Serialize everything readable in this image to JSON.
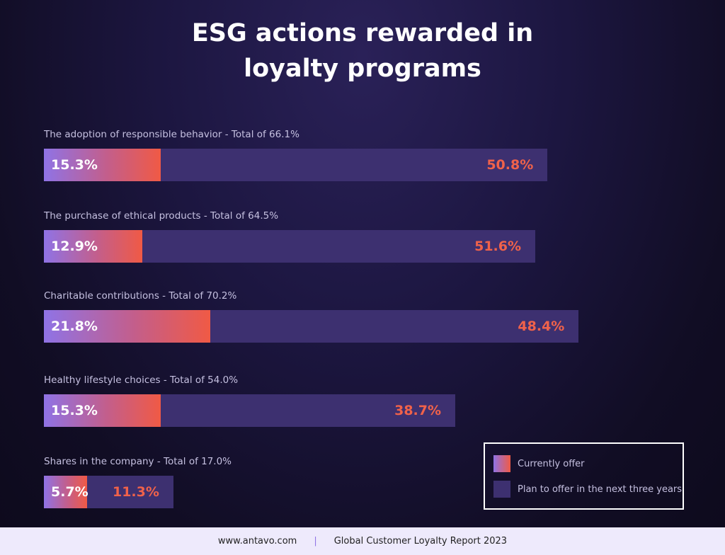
{
  "chart_data": {
    "type": "bar",
    "orientation": "horizontal",
    "stacked": true,
    "title": "ESG actions rewarded in loyalty programs",
    "title_lines": [
      "ESG actions rewarded in",
      "loyalty programs"
    ],
    "categories": [
      "The adoption of responsible behavior - Total of 66.1%",
      "The purchase of ethical products - Total of 64.5%",
      "Charitable contributions - Total of 70.2%",
      "Healthy lifestyle choices - Total of 54.0%",
      "Shares in the company - Total of 17.0%"
    ],
    "series": [
      {
        "name": "Currently offer",
        "values": [
          15.3,
          12.9,
          21.8,
          15.3,
          5.7
        ],
        "labels": [
          "15.3%",
          "12.9%",
          "21.8%",
          "15.3%",
          "5.7%"
        ],
        "color": "#f05a45"
      },
      {
        "name": "Plan to offer in the next three years",
        "values": [
          50.8,
          51.6,
          48.4,
          38.7,
          11.3
        ],
        "labels": [
          "50.8%",
          "51.6%",
          "48.4%",
          "38.7%",
          "11.3%"
        ],
        "color": "#3d3070"
      }
    ],
    "legend": "bottom-right",
    "grid": false
  },
  "footer": {
    "site": "www.antavo.com",
    "separator": "|",
    "report": "Global Customer Loyalty Report 2023"
  }
}
